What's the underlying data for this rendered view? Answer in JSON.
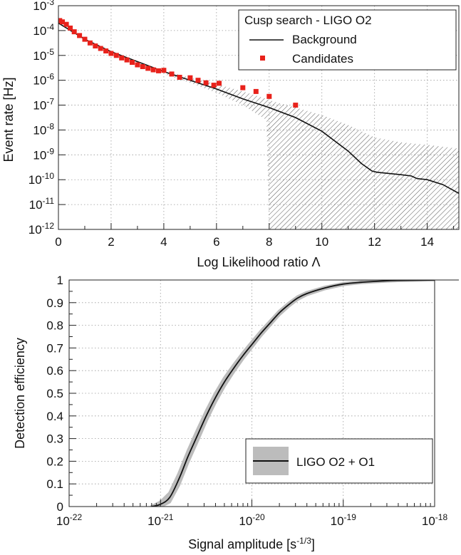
{
  "chart_data": [
    {
      "type": "scatter",
      "title": "",
      "xlabel": "Log Likelihood ratio Λ",
      "ylabel": "Event rate [Hz]",
      "xlim": [
        0,
        15.2
      ],
      "ylim_log10": [
        -12,
        -3
      ],
      "yscale": "log",
      "grid": true,
      "legend_position": "top-right",
      "legend_title": "Cusp search - LIGO O2",
      "x_ticks": [
        "0",
        "2",
        "4",
        "6",
        "8",
        "10",
        "12",
        "14"
      ],
      "y_ticks": [
        {
          "base": "10",
          "exp": "-12"
        },
        {
          "base": "10",
          "exp": "-11"
        },
        {
          "base": "10",
          "exp": "-10"
        },
        {
          "base": "10",
          "exp": "-9"
        },
        {
          "base": "10",
          "exp": "-8"
        },
        {
          "base": "10",
          "exp": "-7"
        },
        {
          "base": "10",
          "exp": "-6"
        },
        {
          "base": "10",
          "exp": "-5"
        },
        {
          "base": "10",
          "exp": "-4"
        },
        {
          "base": "10",
          "exp": "-3"
        }
      ],
      "series": [
        {
          "name": "Background",
          "kind": "line",
          "color": "#111111",
          "x": [
            0,
            1,
            2,
            3,
            4,
            5,
            6,
            7,
            8,
            9,
            10,
            11,
            11.5,
            11.9,
            12.1,
            13,
            13.4,
            13.6,
            14,
            14.6,
            15.2
          ],
          "log10_y": [
            -3.7,
            -4.35,
            -4.85,
            -5.25,
            -5.65,
            -6.0,
            -6.35,
            -6.75,
            -7.1,
            -7.5,
            -8.05,
            -8.85,
            -9.35,
            -9.65,
            -9.7,
            -9.8,
            -9.85,
            -9.95,
            -10.0,
            -10.2,
            -10.55
          ]
        },
        {
          "name": "Background uncertainty",
          "kind": "band",
          "x": [
            4,
            5,
            6,
            7,
            7.9,
            8,
            9,
            10,
            11,
            12,
            13,
            14,
            15.2
          ],
          "log10_upper": [
            -5.6,
            -5.9,
            -6.15,
            -6.45,
            -6.75,
            -6.8,
            -7.1,
            -7.4,
            -7.8,
            -8.3,
            -8.5,
            -8.6,
            -8.75
          ],
          "log10_lower": [
            -5.75,
            -6.1,
            -6.5,
            -7.0,
            -7.6,
            -12,
            -12,
            -12,
            -12,
            -12,
            -12,
            -12,
            -12
          ]
        },
        {
          "name": "Candidates",
          "kind": "points",
          "color": "#e8221b",
          "x": [
            0.05,
            0.15,
            0.3,
            0.45,
            0.6,
            0.8,
            1.0,
            1.2,
            1.4,
            1.6,
            1.8,
            2.0,
            2.2,
            2.4,
            2.6,
            2.8,
            3.0,
            3.2,
            3.4,
            3.6,
            3.8,
            4.0,
            4.3,
            4.6,
            5.0,
            5.3,
            5.6,
            5.9,
            6.1,
            7.0,
            7.5,
            8.0,
            9.0
          ],
          "log10_y": [
            -3.6,
            -3.65,
            -3.75,
            -3.9,
            -4.05,
            -4.2,
            -4.35,
            -4.5,
            -4.62,
            -4.72,
            -4.82,
            -4.92,
            -5.0,
            -5.1,
            -5.18,
            -5.28,
            -5.38,
            -5.45,
            -5.52,
            -5.58,
            -5.62,
            -5.6,
            -5.75,
            -5.88,
            -5.9,
            -6.0,
            -6.1,
            -6.2,
            -6.12,
            -6.3,
            -6.45,
            -6.65,
            -7.0
          ]
        }
      ]
    },
    {
      "type": "line",
      "title": "",
      "xlabel": "Signal amplitude [s",
      "xlabel_sup": "-1/3",
      "xlabel_end": "]",
      "ylabel": "Detection efficiency",
      "xscale": "log",
      "xlim_log10": [
        -22,
        -18
      ],
      "ylim": [
        0,
        1
      ],
      "grid": true,
      "legend_position": "bottom-right",
      "x_ticks": [
        {
          "base": "10",
          "exp": "-22"
        },
        {
          "base": "10",
          "exp": "-21"
        },
        {
          "base": "10",
          "exp": "-20"
        },
        {
          "base": "10",
          "exp": "-19"
        },
        {
          "base": "10",
          "exp": "-18"
        }
      ],
      "y_ticks": [
        "0",
        "0.1",
        "0.2",
        "0.3",
        "0.4",
        "0.5",
        "0.6",
        "0.7",
        "0.8",
        "0.9",
        "1"
      ],
      "series": [
        {
          "name": "LIGO O2 + O1",
          "color": "#111111",
          "band_color": "#bcbcbc",
          "log10_x": [
            -21.1,
            -21.0,
            -20.9,
            -20.8,
            -20.7,
            -20.6,
            -20.5,
            -20.4,
            -20.3,
            -20.2,
            -20.1,
            -20.0,
            -19.9,
            -19.8,
            -19.7,
            -19.6,
            -19.5,
            -19.4,
            -19.2,
            -19.0,
            -18.8,
            -18.6,
            -18.4,
            -18.0
          ],
          "values": [
            0.0,
            0.01,
            0.04,
            0.12,
            0.22,
            0.31,
            0.4,
            0.48,
            0.55,
            0.61,
            0.665,
            0.715,
            0.765,
            0.81,
            0.855,
            0.89,
            0.92,
            0.94,
            0.965,
            0.982,
            0.99,
            0.995,
            0.998,
            1.0
          ],
          "band_halfwidth": [
            0.0,
            0.01,
            0.02,
            0.025,
            0.025,
            0.025,
            0.022,
            0.02,
            0.018,
            0.015,
            0.013,
            0.012,
            0.01,
            0.009,
            0.008,
            0.007,
            0.006,
            0.005,
            0.004,
            0.003,
            0.002,
            0.002,
            0.001,
            0.0
          ]
        }
      ]
    }
  ]
}
